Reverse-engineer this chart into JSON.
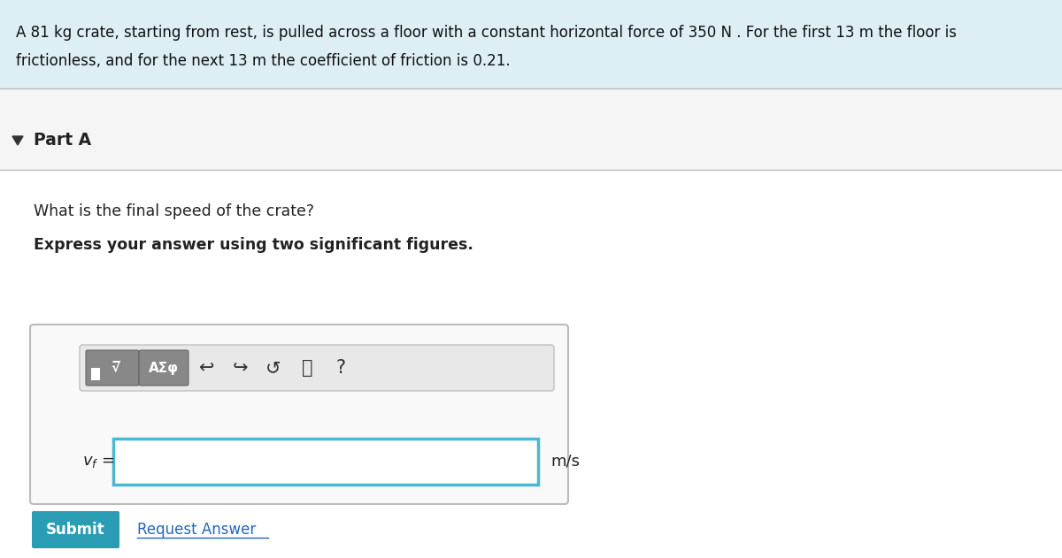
{
  "bg_color": "#f0f0f0",
  "header_bg": "#ddeef5",
  "header_text_line1": "A 81 kg crate, starting from rest, is pulled across a floor with a constant horizontal force of 350 N . For the first 13 m the floor is",
  "header_text_line2": "frictionless, and for the next 13 m the coefficient of friction is 0.21.",
  "part_label": "Part A",
  "question_text": "What is the final speed of the crate?",
  "instruction_text": "Express your answer using two significant figures.",
  "vf_label": "$v_f$ =",
  "unit_label": "m/s",
  "submit_label": "Submit",
  "request_label": "Request Answer",
  "submit_bg": "#2a9db5",
  "submit_text_color": "#ffffff",
  "request_text_color": "#2266bb",
  "input_border": "#4ab8d4",
  "outer_box_bg": "#f8f8f8",
  "outer_box_border": "#cccccc",
  "separator_color": "#cccccc",
  "page_bg": "#f0f0f0",
  "content_bg": "#f5f5f5",
  "figsize": [
    12.0,
    6.31
  ],
  "dpi": 100
}
